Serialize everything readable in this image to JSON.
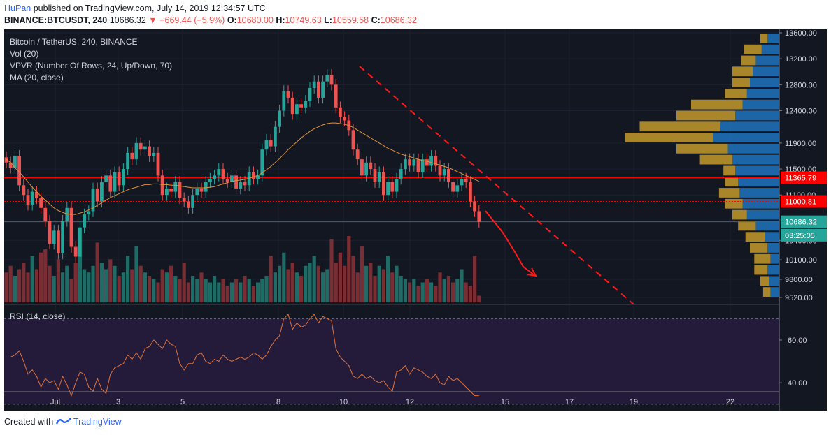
{
  "header": {
    "user": "HuPan",
    "published": "published on TradingView.com, July 14, 2019 12:34:57 UTC",
    "symbol": "BINANCE:BTCUSDT, 240",
    "last": "10686.32",
    "change": "▼ −669.44 (−5.9%)",
    "o_label": "O:",
    "o": "10680.00",
    "h_label": "H:",
    "h": "10749.63",
    "l_label": "L:",
    "l": "10559.58",
    "c_label": "C:",
    "c": "10686.32"
  },
  "legend": {
    "title": "Bitcoin / TetherUS, 240, BINANCE",
    "vol": "Vol (20)",
    "vpvr": "VPVR (Number Of Rows, 24, Up/Down, 70)",
    "ma": "MA (20, close)",
    "rsi": "RSI (14, close)"
  },
  "footer": {
    "created": "Created with",
    "brand": "TradingView"
  },
  "colors": {
    "bg": "#131722",
    "up": "#26a69a",
    "down": "#ef5350",
    "vol_up": "#1f6b66",
    "vol_down": "#7a2e33",
    "ma": "#e0923a",
    "level": "#ff0000",
    "rsi": "#e0743a",
    "rsi_band": "#241a3a",
    "vpvr_up": "#1e73be",
    "vpvr_down": "#c49a2a"
  },
  "chart_data": [
    {
      "type": "candlestick",
      "title": "Bitcoin / TetherUS, 240, BINANCE",
      "y_ticks": [
        "13600.00",
        "13200.00",
        "12800.00",
        "12400.00",
        "11900.00",
        "11500.00",
        "11100.00",
        "10700.00",
        "10400.00",
        "10100.00",
        "9800.00",
        "9520.00"
      ],
      "x_ticks": [
        "Jul",
        "3",
        "5",
        "8",
        "10",
        "12",
        "15",
        "17",
        "19",
        "22"
      ],
      "ylim": [
        9520,
        13600
      ],
      "price_labels": [
        {
          "text": "11365.79",
          "value": 11365.79,
          "color": "#ff0000"
        },
        {
          "text": "11000.81",
          "value": 11000.81,
          "color": "#ff0000"
        },
        {
          "text": "10686.32",
          "value": 10686.32,
          "color": "#26a69a"
        },
        {
          "text": "03:25:05",
          "value": 10480,
          "color": "#26a69a"
        }
      ],
      "levels": [
        {
          "value": 11365.79,
          "style": "solid"
        },
        {
          "value": 11000.81,
          "style": "dotted"
        }
      ],
      "closes": [
        11600,
        11520,
        11700,
        11250,
        11100,
        10950,
        11150,
        11050,
        10900,
        10700,
        10350,
        10550,
        10200,
        10700,
        10900,
        10300,
        10150,
        10600,
        10800,
        10850,
        11200,
        11000,
        11300,
        11400,
        11150,
        11450,
        11250,
        11500,
        11750,
        11650,
        11900,
        11800,
        11850,
        11700,
        11750,
        11400,
        11100,
        11200,
        11150,
        11300,
        11050,
        11000,
        10900,
        11100,
        11200,
        11150,
        11300,
        11350,
        11400,
        11500,
        11350,
        11300,
        11400,
        11200,
        11300,
        11250,
        11450,
        11350,
        11400,
        11800,
        11950,
        11850,
        12150,
        12400,
        12700,
        12600,
        12350,
        12500,
        12450,
        12550,
        12750,
        12850,
        12600,
        12850,
        12950,
        12800,
        12450,
        12300,
        12250,
        12100,
        11800,
        11650,
        11400,
        11600,
        11500,
        11300,
        11450,
        11100,
        11300,
        11150,
        11350,
        11500,
        11650,
        11550,
        11650,
        11450,
        11650,
        11550,
        11700,
        11550,
        11400,
        11500,
        11300,
        11150,
        11250,
        11350,
        11300,
        11000,
        10850,
        10686
      ],
      "ma": [
        11650,
        11600,
        11520,
        11450,
        11380,
        11300,
        11220,
        11150,
        11080,
        11020,
        10960,
        10900,
        10860,
        10830,
        10810,
        10800,
        10800,
        10820,
        10840,
        10870,
        10900,
        10940,
        10980,
        11020,
        11060,
        11090,
        11120,
        11150,
        11180,
        11200,
        11220,
        11240,
        11260,
        11260,
        11270,
        11270,
        11260,
        11260,
        11250,
        11250,
        11240,
        11230,
        11220,
        11210,
        11210,
        11210,
        11210,
        11220,
        11230,
        11250,
        11270,
        11290,
        11310,
        11320,
        11330,
        11340,
        11360,
        11380,
        11400,
        11440,
        11490,
        11540,
        11600,
        11660,
        11730,
        11800,
        11860,
        11920,
        11980,
        12030,
        12080,
        12120,
        12150,
        12180,
        12200,
        12210,
        12210,
        12200,
        12190,
        12170,
        12140,
        12100,
        12060,
        12020,
        11980,
        11940,
        11900,
        11860,
        11820,
        11790,
        11760,
        11730,
        11710,
        11690,
        11670,
        11650,
        11630,
        11620,
        11600,
        11580,
        11560,
        11540,
        11520,
        11490,
        11460,
        11430,
        11400,
        11370,
        11340,
        11310
      ],
      "volumes": [
        0.45,
        0.55,
        0.4,
        0.5,
        0.6,
        0.45,
        0.7,
        0.5,
        0.75,
        0.8,
        0.55,
        0.4,
        0.65,
        0.45,
        0.55,
        0.35,
        0.6,
        0.7,
        0.5,
        0.45,
        0.55,
        0.9,
        0.6,
        0.5,
        0.65,
        0.55,
        0.4,
        0.45,
        0.7,
        0.5,
        0.85,
        0.55,
        0.45,
        0.4,
        0.35,
        0.3,
        0.5,
        0.45,
        0.55,
        0.4,
        0.35,
        0.6,
        0.3,
        0.4,
        0.35,
        0.45,
        0.35,
        0.3,
        0.4,
        0.3,
        0.35,
        0.25,
        0.3,
        0.35,
        0.3,
        0.4,
        0.35,
        0.25,
        0.3,
        0.35,
        0.4,
        0.7,
        0.45,
        0.55,
        0.75,
        0.5,
        0.6,
        0.45,
        0.4,
        0.55,
        0.6,
        0.7,
        0.55,
        0.45,
        0.5,
        0.95,
        0.6,
        0.75,
        0.55,
        1.0,
        0.7,
        0.45,
        0.85,
        0.55,
        0.6,
        0.4,
        0.55,
        0.5,
        0.7,
        0.45,
        0.55,
        0.4,
        0.35,
        0.3,
        0.35,
        0.25,
        0.3,
        0.35,
        0.3,
        0.25,
        0.45,
        0.35,
        0.4,
        0.3,
        0.35,
        0.5,
        0.3,
        0.25,
        0.7,
        0.1
      ]
    },
    {
      "type": "line",
      "title": "RSI (14, close)",
      "y_ticks": [
        "60.00",
        "40.00"
      ],
      "ylim": [
        27,
        76
      ],
      "band": [
        30,
        70
      ],
      "values": [
        52,
        52,
        53,
        55,
        50,
        44,
        46,
        43,
        38,
        42,
        40,
        41,
        37,
        43,
        39,
        34,
        40,
        45,
        44,
        38,
        36,
        42,
        37,
        35,
        44,
        47,
        48,
        49,
        53,
        51,
        54,
        51,
        56,
        57,
        60,
        58,
        56,
        60,
        58,
        57,
        49,
        46,
        49,
        49,
        53,
        54,
        50,
        49,
        51,
        50,
        53,
        51,
        50,
        51,
        52,
        51,
        52,
        54,
        53,
        51,
        53,
        57,
        60,
        62,
        70,
        72,
        65,
        68,
        66,
        67,
        70,
        72,
        68,
        71,
        70,
        69,
        56,
        52,
        50,
        48,
        43,
        42,
        44,
        42,
        43,
        41,
        40,
        41,
        38,
        36,
        45,
        46,
        48,
        44,
        47,
        46,
        45,
        43,
        42,
        44,
        40,
        39,
        43,
        41,
        42,
        40,
        38,
        36,
        34,
        34
      ],
      "xlabel": "",
      "ylabel": ""
    },
    {
      "type": "bar",
      "orientation": "horizontal",
      "title": "VPVR (Number Of Rows, 24, Up/Down, 70)",
      "rows": 24,
      "up": [
        0.06,
        0.07,
        0.08,
        0.06,
        0.08,
        0.1,
        0.16,
        0.22,
        0.25,
        0.27,
        0.28,
        0.3,
        0.32,
        0.35,
        0.45,
        0.4,
        0.3,
        0.25,
        0.22,
        0.2,
        0.18,
        0.16,
        0.12,
        0.08
      ],
      "down": [
        0.05,
        0.06,
        0.09,
        0.11,
        0.12,
        0.13,
        0.12,
        0.1,
        0.12,
        0.14,
        0.09,
        0.08,
        0.22,
        0.35,
        0.6,
        0.55,
        0.4,
        0.35,
        0.15,
        0.12,
        0.14,
        0.1,
        0.12,
        0.05
      ]
    }
  ]
}
